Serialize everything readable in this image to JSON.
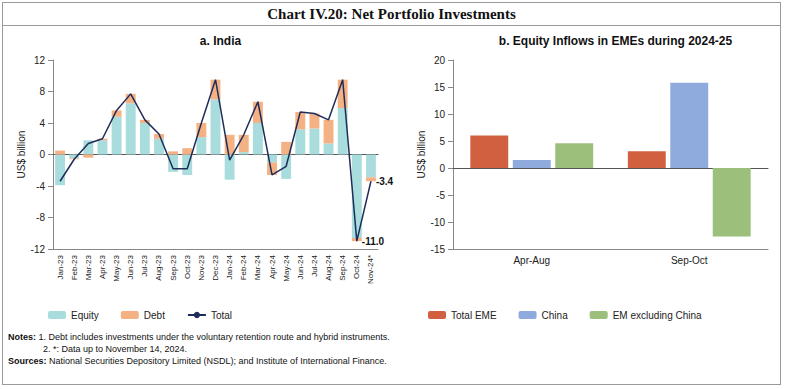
{
  "title": "Chart IV.20: Net Portfolio Investments",
  "chart_data": [
    {
      "type": "bar",
      "title": "a. India",
      "y_label": "US$ billion",
      "categories": [
        "Jan-23",
        "Feb-23",
        "Mar-23",
        "Apr-23",
        "May-23",
        "Jun-23",
        "Jul-23",
        "Aug-23",
        "Sep-23",
        "Oct-23",
        "Nov-23",
        "Dec-23",
        "Jan-24",
        "Feb-24",
        "Mar-24",
        "Apr-24",
        "May-24",
        "Jun-24",
        "Jul-24",
        "Aug-24",
        "Sep-24",
        "Oct-24",
        "Nov-24*"
      ],
      "series": [
        {
          "name": "Equity",
          "type": "bar",
          "color": "#a9dcdc",
          "values": [
            -3.9,
            -0.5,
            1.8,
            1.8,
            4.8,
            6.5,
            4.0,
            2.0,
            -2.2,
            -2.6,
            2.2,
            7.0,
            -3.2,
            0.3,
            4.0,
            -1.0,
            -3.1,
            3.2,
            3.3,
            1.4,
            5.9,
            -10.6,
            -2.9
          ]
        },
        {
          "name": "Debt",
          "type": "bar",
          "color": "#f4b183",
          "values": [
            0.5,
            -0.1,
            -0.4,
            0.2,
            0.8,
            1.2,
            0.4,
            0.6,
            0.4,
            0.8,
            1.8,
            2.5,
            2.5,
            2.2,
            2.7,
            -1.6,
            1.6,
            2.2,
            1.9,
            3.0,
            3.6,
            -0.4,
            -0.5
          ]
        },
        {
          "name": "Total",
          "type": "line",
          "color": "#1f2d5a",
          "values": [
            -3.4,
            -0.6,
            1.4,
            2.0,
            5.6,
            7.7,
            4.4,
            2.6,
            -1.8,
            -1.8,
            4.0,
            9.5,
            -0.7,
            2.5,
            6.7,
            -2.6,
            -1.5,
            5.4,
            5.2,
            4.4,
            9.5,
            -11.0,
            -3.4
          ],
          "value_labels": [
            null,
            null,
            null,
            null,
            null,
            null,
            null,
            null,
            null,
            null,
            null,
            null,
            null,
            null,
            null,
            null,
            null,
            null,
            null,
            null,
            null,
            "-11.0",
            "-3.4"
          ]
        }
      ],
      "stacked": true,
      "ylim": [
        -12,
        12
      ],
      "yticks": [
        -12,
        -8,
        -4,
        0,
        4,
        8,
        12
      ],
      "grid": false,
      "legend": "bottom"
    },
    {
      "type": "bar",
      "title": "b. Equity Inflows in EMEs during 2024-25",
      "y_label": "US$ billion",
      "categories": [
        "Apr-Aug",
        "Sep-Oct"
      ],
      "series": [
        {
          "name": "Total EME",
          "color": "#d0603f",
          "values": [
            6.0,
            3.1
          ]
        },
        {
          "name": "China",
          "color": "#8faadc",
          "values": [
            1.5,
            15.8
          ]
        },
        {
          "name": "EM excluding China",
          "color": "#9cbf7c",
          "values": [
            4.6,
            -12.7
          ]
        }
      ],
      "ylim": [
        -15,
        20
      ],
      "yticks": [
        -15,
        -10,
        -5,
        0,
        5,
        10,
        15,
        20
      ],
      "grid": false,
      "legend": "bottom"
    }
  ],
  "notes": {
    "label": "Notes:",
    "items": [
      "1. Debt includes investments under the voluntary retention route and hybrid instruments.",
      "2. *: Data up to November 14, 2024."
    ]
  },
  "sources": {
    "label": "Sources:",
    "text": "National Securities Depository Limited (NSDL); and Institute of International Finance."
  }
}
